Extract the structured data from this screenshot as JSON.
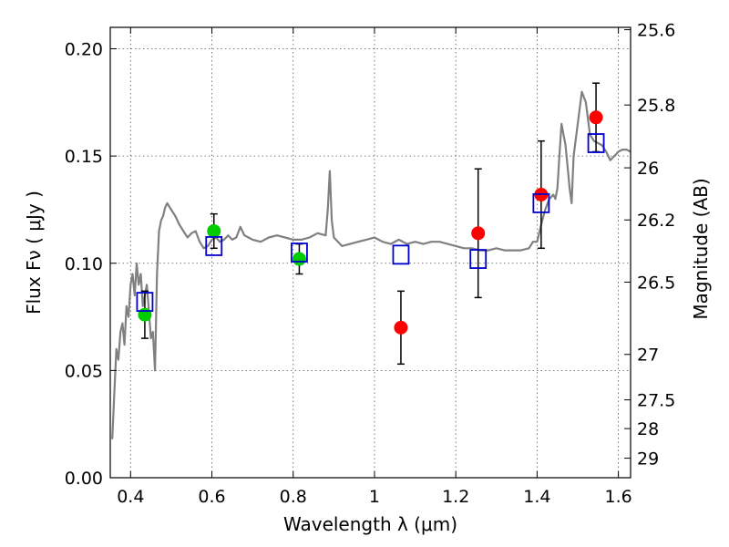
{
  "chart_data": {
    "type": "scatter",
    "xlabel": "Wavelength  λ (μm)",
    "ylabel": "Flux  Fν  ( μJy )",
    "ylabel2": "Magnitude (AB)",
    "xlim": [
      0.35,
      1.63
    ],
    "ylim": [
      0.0,
      0.21
    ],
    "grid": true,
    "x_ticks": [
      0.4,
      0.6,
      0.8,
      1.0,
      1.2,
      1.4,
      1.6
    ],
    "x_tick_labels": [
      "0.4",
      "0.6",
      "0.8",
      "1",
      "1.2",
      "1.4",
      "1.6"
    ],
    "y_ticks": [
      0.0,
      0.05,
      0.1,
      0.15,
      0.2
    ],
    "y_tick_labels": [
      "0.00",
      "0.05",
      "0.10",
      "0.15",
      "0.20"
    ],
    "right_axis_ticks": [
      {
        "label": "25.6",
        "flux": 0.2089
      },
      {
        "label": "25.8",
        "flux": 0.1738
      },
      {
        "label": "26",
        "flux": 0.1445
      },
      {
        "label": "26.2",
        "flux": 0.1202
      },
      {
        "label": "26.5",
        "flux": 0.0912
      },
      {
        "label": "27",
        "flux": 0.0575
      },
      {
        "label": "27.5",
        "flux": 0.0363
      },
      {
        "label": "28",
        "flux": 0.0229
      },
      {
        "label": "29",
        "flux": 0.0091
      }
    ],
    "series": [
      {
        "kind": "line",
        "color": "#808080",
        "x": [
          0.355,
          0.36,
          0.365,
          0.37,
          0.375,
          0.38,
          0.385,
          0.39,
          0.395,
          0.4,
          0.405,
          0.41,
          0.415,
          0.42,
          0.425,
          0.43,
          0.435,
          0.44,
          0.445,
          0.45,
          0.455,
          0.46,
          0.465,
          0.47,
          0.475,
          0.48,
          0.485,
          0.49,
          0.5,
          0.51,
          0.52,
          0.53,
          0.54,
          0.55,
          0.56,
          0.57,
          0.58,
          0.59,
          0.6,
          0.61,
          0.62,
          0.63,
          0.64,
          0.65,
          0.66,
          0.67,
          0.68,
          0.69,
          0.7,
          0.72,
          0.74,
          0.76,
          0.78,
          0.8,
          0.82,
          0.84,
          0.86,
          0.88,
          0.885,
          0.89,
          0.895,
          0.9,
          0.92,
          0.94,
          0.96,
          0.98,
          1.0,
          1.02,
          1.04,
          1.06,
          1.08,
          1.1,
          1.12,
          1.14,
          1.16,
          1.18,
          1.2,
          1.22,
          1.24,
          1.26,
          1.28,
          1.3,
          1.32,
          1.34,
          1.36,
          1.38,
          1.39,
          1.4,
          1.41,
          1.42,
          1.43,
          1.44,
          1.445,
          1.45,
          1.455,
          1.46,
          1.47,
          1.48,
          1.485,
          1.49,
          1.5,
          1.51,
          1.52,
          1.53,
          1.54,
          1.55,
          1.56,
          1.57,
          1.58,
          1.59,
          1.6,
          1.61,
          1.62,
          1.63
        ],
        "y": [
          0.018,
          0.04,
          0.06,
          0.055,
          0.068,
          0.072,
          0.062,
          0.08,
          0.075,
          0.09,
          0.095,
          0.085,
          0.1,
          0.09,
          0.095,
          0.08,
          0.085,
          0.09,
          0.078,
          0.065,
          0.068,
          0.05,
          0.095,
          0.115,
          0.12,
          0.122,
          0.126,
          0.128,
          0.125,
          0.122,
          0.118,
          0.115,
          0.112,
          0.114,
          0.115,
          0.11,
          0.107,
          0.108,
          0.111,
          0.112,
          0.11,
          0.111,
          0.113,
          0.111,
          0.112,
          0.117,
          0.113,
          0.112,
          0.111,
          0.11,
          0.112,
          0.113,
          0.112,
          0.111,
          0.111,
          0.112,
          0.114,
          0.113,
          0.125,
          0.143,
          0.12,
          0.112,
          0.108,
          0.109,
          0.11,
          0.111,
          0.112,
          0.11,
          0.109,
          0.111,
          0.109,
          0.11,
          0.109,
          0.11,
          0.11,
          0.109,
          0.108,
          0.107,
          0.107,
          0.106,
          0.106,
          0.107,
          0.106,
          0.106,
          0.106,
          0.107,
          0.11,
          0.11,
          0.118,
          0.125,
          0.13,
          0.132,
          0.13,
          0.135,
          0.15,
          0.165,
          0.155,
          0.135,
          0.128,
          0.15,
          0.165,
          0.18,
          0.175,
          0.16,
          0.157,
          0.156,
          0.155,
          0.152,
          0.148,
          0.15,
          0.152,
          0.153,
          0.153,
          0.152
        ]
      },
      {
        "kind": "points",
        "marker": "circle",
        "color": "#00cc00",
        "x": [
          0.435,
          0.605,
          0.815
        ],
        "y": [
          0.076,
          0.115,
          0.102
        ],
        "yerr": [
          0.011,
          0.008,
          0.007
        ]
      },
      {
        "kind": "points",
        "marker": "circle",
        "color": "#ff0000",
        "x": [
          1.065,
          1.255,
          1.41,
          1.545
        ],
        "y": [
          0.07,
          0.114,
          0.132,
          0.168
        ],
        "yerr": [
          0.017,
          0.03,
          0.025,
          0.016
        ]
      },
      {
        "kind": "points",
        "marker": "square",
        "color": "#0000cc",
        "x": [
          0.435,
          0.605,
          0.815,
          1.065,
          1.255,
          1.41,
          1.545
        ],
        "y": [
          0.082,
          0.108,
          0.105,
          0.104,
          0.102,
          0.128,
          0.156
        ]
      }
    ]
  }
}
